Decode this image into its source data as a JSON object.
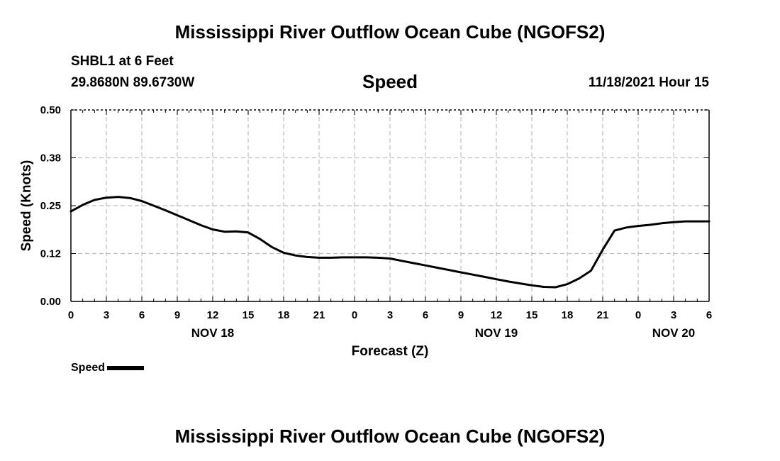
{
  "header": {
    "title": "Mississippi River Outflow Ocean Cube (NGOFS2)",
    "station": "SHBL1 at 6 Feet",
    "coords": "29.8680N  89.6730W",
    "variable_title": "Speed",
    "datetime": "11/18/2021 Hour 15"
  },
  "footer": {
    "title": "Mississippi River Outflow Ocean Cube (NGOFS2)"
  },
  "legend": {
    "label": "Speed",
    "color": "#000000"
  },
  "chart_data": {
    "type": "line",
    "title": "Speed",
    "xlabel": "Forecast (Z)",
    "ylabel": "Speed (Knots)",
    "xlim": [
      0,
      54
    ],
    "ylim": [
      0,
      0.5
    ],
    "yticks": [
      0.0,
      0.125,
      0.25,
      0.375,
      0.5
    ],
    "ytick_labels": [
      "0.00",
      "0.12",
      "0.25",
      "0.38",
      "0.50"
    ],
    "xticks": [
      0,
      3,
      6,
      9,
      12,
      15,
      18,
      21,
      24,
      27,
      30,
      33,
      36,
      39,
      42,
      45,
      48,
      51,
      54
    ],
    "xtick_labels": [
      "0",
      "3",
      "6",
      "9",
      "12",
      "15",
      "18",
      "21",
      "0",
      "3",
      "6",
      "9",
      "12",
      "15",
      "18",
      "21",
      "0",
      "3",
      "6"
    ],
    "date_labels": [
      {
        "x": 12,
        "label": "NOV 18"
      },
      {
        "x": 36,
        "label": "NOV 19"
      },
      {
        "x": 51,
        "label": "NOV 20"
      }
    ],
    "grid": true,
    "series": [
      {
        "name": "Speed",
        "x": [
          0,
          1,
          2,
          3,
          4,
          5,
          6,
          7,
          8,
          9,
          10,
          11,
          12,
          13,
          14,
          15,
          16,
          17,
          18,
          19,
          20,
          21,
          22,
          23,
          24,
          25,
          26,
          27,
          28,
          29,
          30,
          31,
          32,
          33,
          34,
          35,
          36,
          37,
          38,
          39,
          40,
          41,
          42,
          43,
          44,
          45,
          46,
          47,
          48,
          49,
          50,
          51,
          52,
          53,
          54
        ],
        "values": [
          0.235,
          0.252,
          0.265,
          0.271,
          0.273,
          0.27,
          0.262,
          0.25,
          0.238,
          0.225,
          0.212,
          0.199,
          0.188,
          0.182,
          0.183,
          0.18,
          0.163,
          0.142,
          0.127,
          0.12,
          0.116,
          0.114,
          0.114,
          0.115,
          0.115,
          0.115,
          0.114,
          0.112,
          0.106,
          0.1,
          0.094,
          0.088,
          0.082,
          0.076,
          0.07,
          0.064,
          0.058,
          0.052,
          0.047,
          0.042,
          0.038,
          0.037,
          0.045,
          0.06,
          0.08,
          0.135,
          0.185,
          0.193,
          0.197,
          0.2,
          0.204,
          0.207,
          0.209,
          0.209,
          0.209
        ]
      }
    ]
  }
}
